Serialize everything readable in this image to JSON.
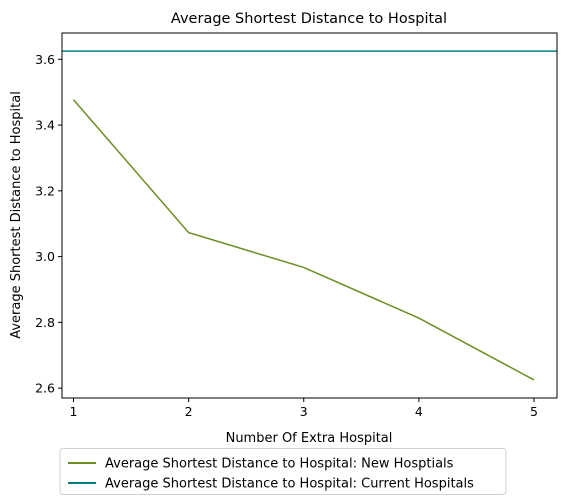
{
  "chart_data": {
    "type": "line",
    "title": "Average Shortest Distance to Hospital",
    "xlabel": "Number Of Extra Hospital",
    "ylabel": "Average Shortest Distance to Hospital",
    "x": [
      1,
      2,
      3,
      4,
      5
    ],
    "xlim": [
      0.9,
      5.2
    ],
    "ylim": [
      2.57,
      3.68
    ],
    "xticks": [
      1,
      2,
      3,
      4,
      5
    ],
    "yticks": [
      2.6,
      2.8,
      3.0,
      3.2,
      3.4,
      3.6
    ],
    "ytick_labels": [
      "2.6",
      "2.8",
      "3.0",
      "3.2",
      "3.4",
      "3.6"
    ],
    "grid": false,
    "legend_position": "below plot",
    "series": [
      {
        "name": "Average Shortest Distance to Hospital: New Hosptials",
        "kind": "line",
        "color": "#6b8e23",
        "values": [
          3.477,
          3.073,
          2.967,
          2.813,
          2.625
        ]
      },
      {
        "name": "Average Shortest Distance to Hospital: Current Hospitals",
        "kind": "hline",
        "color": "#008080",
        "value": 3.625
      }
    ]
  }
}
